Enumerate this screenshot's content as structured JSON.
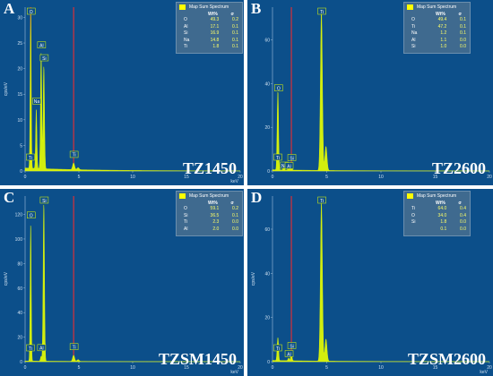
{
  "panels": [
    {
      "letter": "A",
      "tag": "TZ1450",
      "legend": {
        "title": "Map Sum Spectrum",
        "header": [
          "Wt%",
          "σ"
        ],
        "rows": [
          [
            "O",
            "49.3",
            "0.2"
          ],
          [
            "Al",
            "17.1",
            "0.1"
          ],
          [
            "Si",
            "16.9",
            "0.1"
          ],
          [
            "Na",
            "14.8",
            "0.1"
          ],
          [
            "Ti",
            "1.8",
            "0.1"
          ]
        ]
      },
      "chart_data": {
        "type": "line",
        "xlabel": "keV",
        "ylabel": "cps/eV",
        "xlim": [
          0,
          20
        ],
        "ylim": [
          0,
          32
        ],
        "x_ticks": [
          0,
          5,
          10,
          15,
          20
        ],
        "y_ticks": [
          0,
          5,
          10,
          15,
          20,
          25,
          30
        ],
        "series": [
          {
            "name": "Map Sum Spectrum",
            "peaks": [
              [
                0.52,
                30.5
              ],
              [
                1.04,
                11.5
              ],
              [
                1.49,
                22.5
              ],
              [
                1.74,
                20
              ],
              [
                4.51,
                1.3
              ],
              [
                4.93,
                0.4
              ]
            ]
          }
        ],
        "markers": [
          {
            "label": "O",
            "x": 0.52
          },
          {
            "label": "Ti",
            "x": 0.45
          },
          {
            "label": "Na",
            "x": 1.04
          },
          {
            "label": "Al",
            "x": 1.49
          },
          {
            "label": "Si",
            "x": 1.74
          },
          {
            "label": "Ti",
            "x": 4.51
          }
        ],
        "red_lines": [
          0.52,
          4.51
        ]
      }
    },
    {
      "letter": "B",
      "tag": "TZ2600",
      "legend": {
        "title": "Map Sum Spectrum",
        "header": [
          "Wt%",
          "σ"
        ],
        "rows": [
          [
            "O",
            "49.4",
            "0.1"
          ],
          [
            "Ti",
            "47.2",
            "0.1"
          ],
          [
            "Na",
            "1.2",
            "0.1"
          ],
          [
            "Al",
            "1.1",
            "0.0"
          ],
          [
            "Si",
            "1.0",
            "0.0"
          ]
        ]
      },
      "chart_data": {
        "type": "line",
        "xlabel": "",
        "ylabel": "",
        "xlim": [
          0,
          20
        ],
        "ylim": [
          0,
          75
        ],
        "x_ticks": [
          0,
          5,
          10,
          15,
          20
        ],
        "y_ticks": [
          0,
          20,
          40,
          60
        ],
        "series": [
          {
            "name": "Map Sum Spectrum",
            "peaks": [
              [
                0.45,
                18
              ],
              [
                0.52,
                27
              ],
              [
                1.04,
                1.5
              ],
              [
                1.49,
                1.6
              ],
              [
                1.74,
                1.8
              ],
              [
                4.51,
                73
              ],
              [
                4.93,
                11
              ]
            ]
          }
        ],
        "markers": [
          {
            "label": "O",
            "x": 0.52
          },
          {
            "label": "Ti",
            "x": 0.45
          },
          {
            "label": "Na",
            "x": 1.04
          },
          {
            "label": "Si",
            "x": 1.74
          },
          {
            "label": "Al",
            "x": 1.49
          },
          {
            "label": "Ti",
            "x": 4.51
          }
        ],
        "red_lines": [
          1.74
        ]
      }
    },
    {
      "letter": "C",
      "tag": "TZSM1450",
      "legend": {
        "title": "Map Sum Spectrum",
        "header": [
          "Wt%",
          "σ"
        ],
        "rows": [
          [
            "O",
            "59.1",
            "0.2"
          ],
          [
            "Si",
            "36.5",
            "0.1"
          ],
          [
            "Ti",
            "2.3",
            "0.0"
          ],
          [
            "Al",
            "2.0",
            "0.0"
          ]
        ]
      },
      "chart_data": {
        "type": "line",
        "xlabel": "keV",
        "ylabel": "cps/eV",
        "xlim": [
          0,
          20
        ],
        "ylim": [
          0,
          135
        ],
        "x_ticks": [
          0,
          5,
          10,
          15,
          20
        ],
        "y_ticks": [
          0,
          20,
          40,
          60,
          80,
          100,
          120
        ],
        "series": [
          {
            "name": "Map Sum Spectrum",
            "peaks": [
              [
                0.52,
                112
              ],
              [
                1.49,
                4
              ],
              [
                1.74,
                128
              ],
              [
                4.51,
                5
              ],
              [
                4.93,
                1.5
              ]
            ]
          }
        ],
        "markers": [
          {
            "label": "Si",
            "x": 1.74
          },
          {
            "label": "O",
            "x": 0.52
          },
          {
            "label": "Ti",
            "x": 0.45
          },
          {
            "label": "Al",
            "x": 1.49
          },
          {
            "label": "Ti",
            "x": 4.51
          }
        ],
        "red_lines": [
          4.51
        ]
      }
    },
    {
      "letter": "D",
      "tag": "TZSM2600",
      "legend": {
        "title": "Map Sum Spectrum",
        "header": [
          "Wt%",
          "σ"
        ],
        "rows": [
          [
            "Ti",
            "64.0",
            "0.4"
          ],
          [
            "O",
            "34.0",
            "0.4"
          ],
          [
            "Si",
            "1.8",
            "0.0"
          ],
          [
            "",
            "0.1",
            "0.0"
          ]
        ]
      },
      "chart_data": {
        "type": "line",
        "xlabel": "keV",
        "ylabel": "cps/eV",
        "xlim": [
          0,
          20
        ],
        "ylim": [
          0,
          75
        ],
        "x_ticks": [
          0,
          5,
          10,
          15,
          20
        ],
        "y_ticks": [
          0,
          20,
          40,
          60
        ],
        "series": [
          {
            "name": "Map Sum Spectrum",
            "peaks": [
              [
                0.45,
                5
              ],
              [
                0.52,
                8
              ],
              [
                1.49,
                1.2
              ],
              [
                1.74,
                3
              ],
              [
                4.51,
                72
              ],
              [
                4.93,
                10
              ]
            ]
          }
        ],
        "markers": [
          {
            "label": "Ti",
            "x": 4.51
          },
          {
            "label": "Ti",
            "x": 0.45
          },
          {
            "label": "Si",
            "x": 1.74
          },
          {
            "label": "Al",
            "x": 1.49
          }
        ],
        "red_lines": [
          1.74
        ]
      }
    }
  ]
}
